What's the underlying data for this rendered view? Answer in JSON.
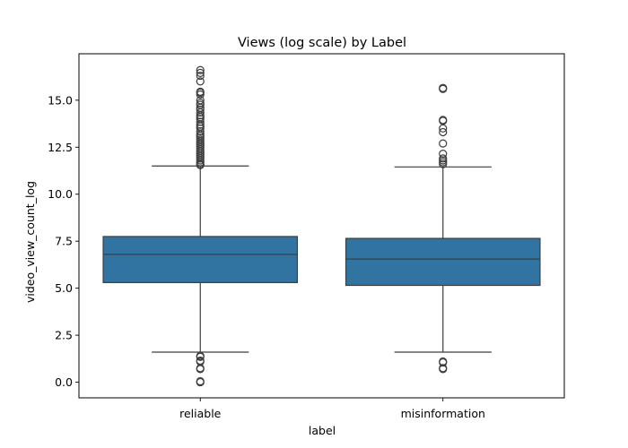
{
  "chart_data": {
    "type": "box",
    "title": "Views (log scale) by Label",
    "xlabel": "label",
    "ylabel": "video_view_count_log",
    "categories": [
      "reliable",
      "misinformation"
    ],
    "ylim": [
      -0.83,
      17.47
    ],
    "yticks": [
      0.0,
      2.5,
      5.0,
      7.5,
      10.0,
      12.5,
      15.0
    ],
    "ytick_labels": [
      "0.0",
      "2.5",
      "5.0",
      "7.5",
      "10.0",
      "12.5",
      "15.0"
    ],
    "grid": false,
    "legend": "none",
    "box_color": "#3274a1",
    "line_color": "#3d3d3d",
    "boxes": [
      {
        "label": "reliable",
        "whisker_low": 1.6,
        "q1": 5.3,
        "median": 6.8,
        "q3": 7.75,
        "whisker_high": 11.5,
        "outliers": [
          0.0,
          0.05,
          0.7,
          0.75,
          1.1,
          1.15,
          1.35,
          1.4,
          11.55,
          11.6,
          11.7,
          11.8,
          11.9,
          12.0,
          12.1,
          12.2,
          12.3,
          12.4,
          12.5,
          12.6,
          12.7,
          12.8,
          12.9,
          13.0,
          13.1,
          13.2,
          13.35,
          13.5,
          13.6,
          13.7,
          13.85,
          14.0,
          14.1,
          14.2,
          14.35,
          14.5,
          14.6,
          14.75,
          14.85,
          15.0,
          15.3,
          15.4,
          15.45,
          16.0,
          16.3,
          16.45,
          16.6
        ]
      },
      {
        "label": "misinformation",
        "whisker_low": 1.6,
        "q1": 5.15,
        "median": 6.55,
        "q3": 7.65,
        "whisker_high": 11.45,
        "outliers": [
          0.7,
          0.75,
          1.05,
          1.1,
          11.6,
          11.7,
          11.8,
          11.9,
          12.15,
          12.7,
          13.3,
          13.5,
          13.9,
          13.95,
          15.6,
          15.65
        ]
      }
    ]
  }
}
